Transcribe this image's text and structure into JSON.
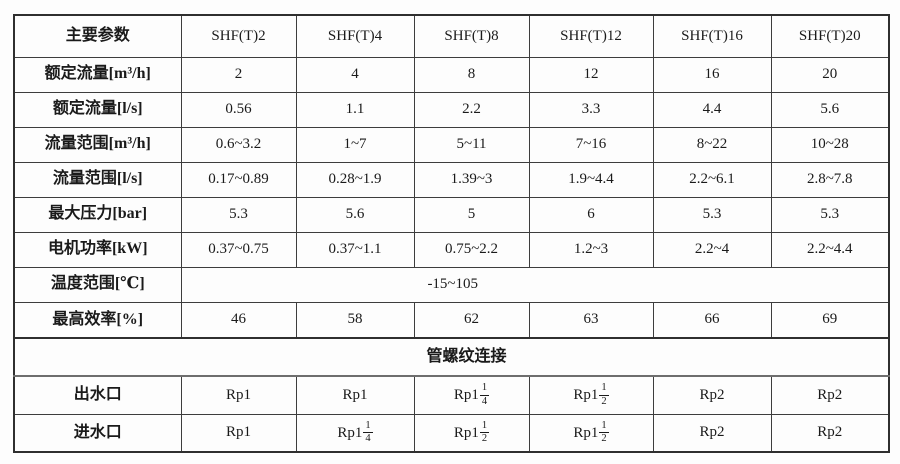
{
  "colors": {
    "background": "#fdfdfd",
    "border_outer": "#2f2f2f",
    "border_inner": "#3d3d3d",
    "text": "#1a1a1a"
  },
  "table": {
    "corner_label": "主要参数",
    "models": [
      "SHF(T)2",
      "SHF(T)4",
      "SHF(T)8",
      "SHF(T)12",
      "SHF(T)16",
      "SHF(T)20"
    ],
    "rows": [
      {
        "type": "data",
        "label": "额定流量[m³/h]",
        "values": [
          "2",
          "4",
          "8",
          "12",
          "16",
          "20"
        ]
      },
      {
        "type": "data",
        "label": "额定流量[l/s]",
        "values": [
          "0.56",
          "1.1",
          "2.2",
          "3.3",
          "4.4",
          "5.6"
        ]
      },
      {
        "type": "data",
        "label": "流量范围[m³/h]",
        "values": [
          "0.6~3.2",
          "1~7",
          "5~11",
          "7~16",
          "8~22",
          "10~28"
        ]
      },
      {
        "type": "data",
        "label": "流量范围[l/s]",
        "values": [
          "0.17~0.89",
          "0.28~1.9",
          "1.39~3",
          "1.9~4.4",
          "2.2~6.1",
          "2.8~7.8"
        ]
      },
      {
        "type": "data",
        "label": "最大压力[bar]",
        "values": [
          "5.3",
          "5.6",
          "5",
          "6",
          "5.3",
          "5.3"
        ]
      },
      {
        "type": "data",
        "label": "电机功率[kW]",
        "values": [
          "0.37~0.75",
          "0.37~1.1",
          "0.75~2.2",
          "1.2~3",
          "2.2~4",
          "2.2~4.4"
        ]
      },
      {
        "type": "merged",
        "label": "温度范围[℃]",
        "value": "-15~105"
      },
      {
        "type": "data",
        "label": "最高效率[%]",
        "values": [
          "46",
          "58",
          "62",
          "63",
          "66",
          "69"
        ],
        "row_class": "eff-row"
      },
      {
        "type": "fullspan",
        "value": "管螺纹连接"
      },
      {
        "type": "data",
        "label": "出水口",
        "values": [
          "Rp1",
          "Rp1",
          "Rp1 1/4",
          "Rp1 1/2",
          "Rp2",
          "Rp2"
        ],
        "row_class": "port-row"
      },
      {
        "type": "data",
        "label": "进水口",
        "values": [
          "Rp1",
          "Rp1 1/4",
          "Rp1 1/2",
          "Rp1 1/2",
          "Rp2",
          "Rp2"
        ],
        "row_class": "port-row"
      }
    ]
  }
}
